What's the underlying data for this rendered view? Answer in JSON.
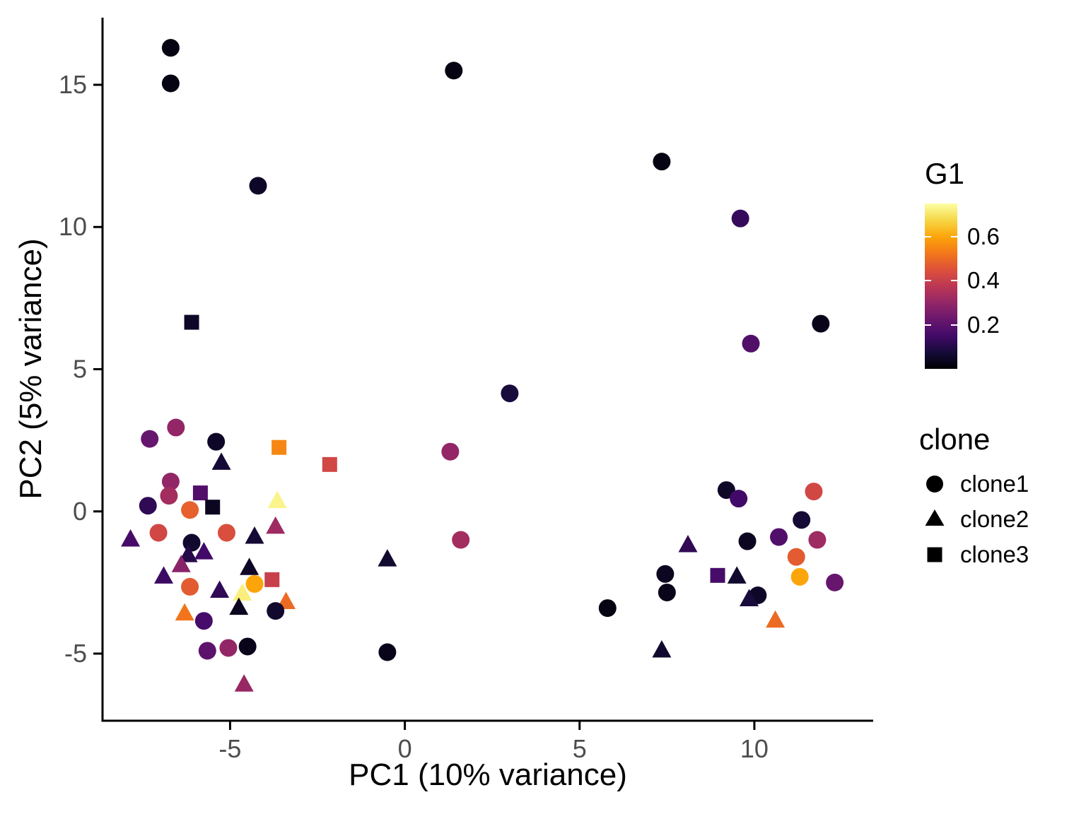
{
  "chart_data": {
    "type": "scatter",
    "title": "",
    "xlabel": "PC1 (10% variance)",
    "ylabel": "PC2 (5% variance)",
    "xlim": [
      -8.65,
      13.4
    ],
    "ylim": [
      -7.36,
      17.36
    ],
    "x_ticks": [
      -5,
      0,
      5,
      10
    ],
    "y_ticks": [
      -5,
      0,
      5,
      10,
      15
    ],
    "grid": false,
    "background": "#ffffff",
    "axis_color": "#000000",
    "tick_label_color": "#4d4d4d",
    "color_scale": {
      "title": "G1",
      "domain": [
        0,
        0.75
      ],
      "ticks": [
        0.6,
        0.4,
        0.2
      ],
      "palette": "inferno",
      "anchors": [
        "#000004",
        "#160b39",
        "#420a68",
        "#6a176e",
        "#932667",
        "#bc3754",
        "#dd513a",
        "#f37819",
        "#fca50a",
        "#f6d746",
        "#fcffa4"
      ]
    },
    "shape_scale": {
      "title": "clone",
      "entries": [
        {
          "shape": "circle",
          "label": "clone1"
        },
        {
          "shape": "triangle",
          "label": "clone2"
        },
        {
          "shape": "square",
          "label": "clone3"
        }
      ]
    },
    "points": [
      {
        "x": -6.7,
        "y": 16.3,
        "clone": "clone1",
        "g1": 0.02
      },
      {
        "x": -6.7,
        "y": 15.05,
        "clone": "clone1",
        "g1": 0.02
      },
      {
        "x": -4.2,
        "y": 11.45,
        "clone": "clone1",
        "g1": 0.05
      },
      {
        "x": 1.4,
        "y": 15.5,
        "clone": "clone1",
        "g1": 0.02
      },
      {
        "x": 7.35,
        "y": 12.3,
        "clone": "clone1",
        "g1": 0.02
      },
      {
        "x": 9.6,
        "y": 10.3,
        "clone": "clone1",
        "g1": 0.13
      },
      {
        "x": 9.9,
        "y": 5.9,
        "clone": "clone1",
        "g1": 0.18
      },
      {
        "x": 11.9,
        "y": 6.6,
        "clone": "clone1",
        "g1": 0.03
      },
      {
        "x": -6.1,
        "y": 6.65,
        "clone": "clone3",
        "g1": 0.05
      },
      {
        "x": 3.0,
        "y": 4.15,
        "clone": "clone1",
        "g1": 0.08
      },
      {
        "x": 1.3,
        "y": 2.1,
        "clone": "clone1",
        "g1": 0.3
      },
      {
        "x": -7.3,
        "y": 2.55,
        "clone": "clone1",
        "g1": 0.22
      },
      {
        "x": -6.55,
        "y": 2.95,
        "clone": "clone1",
        "g1": 0.3
      },
      {
        "x": -5.4,
        "y": 2.45,
        "clone": "clone1",
        "g1": 0.05
      },
      {
        "x": -3.6,
        "y": 2.25,
        "clone": "clone3",
        "g1": 0.55
      },
      {
        "x": -2.15,
        "y": 1.65,
        "clone": "clone3",
        "g1": 0.42
      },
      {
        "x": -5.25,
        "y": 1.7,
        "clone": "clone2",
        "g1": 0.07
      },
      {
        "x": -6.7,
        "y": 1.05,
        "clone": "clone1",
        "g1": 0.3
      },
      {
        "x": -6.75,
        "y": 0.55,
        "clone": "clone1",
        "g1": 0.33
      },
      {
        "x": -5.85,
        "y": 0.65,
        "clone": "clone3",
        "g1": 0.18
      },
      {
        "x": -5.5,
        "y": 0.15,
        "clone": "clone3",
        "g1": 0.04
      },
      {
        "x": -3.65,
        "y": 0.35,
        "clone": "clone2",
        "g1": 0.73
      },
      {
        "x": -7.35,
        "y": 0.2,
        "clone": "clone1",
        "g1": 0.12
      },
      {
        "x": -6.15,
        "y": 0.05,
        "clone": "clone1",
        "g1": 0.48
      },
      {
        "x": -7.05,
        "y": -0.75,
        "clone": "clone1",
        "g1": 0.42
      },
      {
        "x": -5.1,
        "y": -0.75,
        "clone": "clone1",
        "g1": 0.44
      },
      {
        "x": -3.7,
        "y": -0.55,
        "clone": "clone2",
        "g1": 0.32
      },
      {
        "x": -7.85,
        "y": -1.0,
        "clone": "clone2",
        "g1": 0.16
      },
      {
        "x": -4.3,
        "y": -0.9,
        "clone": "clone2",
        "g1": 0.07
      },
      {
        "x": -6.1,
        "y": -1.1,
        "clone": "clone1",
        "g1": 0.06
      },
      {
        "x": -6.2,
        "y": -1.55,
        "clone": "clone2",
        "g1": 0.1
      },
      {
        "x": -5.75,
        "y": -1.45,
        "clone": "clone2",
        "g1": 0.15
      },
      {
        "x": -6.9,
        "y": -2.3,
        "clone": "clone2",
        "g1": 0.14
      },
      {
        "x": -6.4,
        "y": -1.9,
        "clone": "clone2",
        "g1": 0.28
      },
      {
        "x": -0.5,
        "y": -1.7,
        "clone": "clone2",
        "g1": 0.06
      },
      {
        "x": 1.6,
        "y": -1.0,
        "clone": "clone1",
        "g1": 0.33
      },
      {
        "x": -4.45,
        "y": -2.0,
        "clone": "clone2",
        "g1": 0.05
      },
      {
        "x": -3.8,
        "y": -2.4,
        "clone": "clone3",
        "g1": 0.4
      },
      {
        "x": -4.3,
        "y": -2.55,
        "clone": "clone1",
        "g1": 0.6
      },
      {
        "x": -4.65,
        "y": -2.9,
        "clone": "clone2",
        "g1": 0.72
      },
      {
        "x": -5.3,
        "y": -2.8,
        "clone": "clone2",
        "g1": 0.12
      },
      {
        "x": -6.15,
        "y": -2.65,
        "clone": "clone1",
        "g1": 0.47
      },
      {
        "x": -3.4,
        "y": -3.2,
        "clone": "clone2",
        "g1": 0.5
      },
      {
        "x": -6.3,
        "y": -3.6,
        "clone": "clone2",
        "g1": 0.52
      },
      {
        "x": -5.75,
        "y": -3.85,
        "clone": "clone1",
        "g1": 0.16
      },
      {
        "x": -3.7,
        "y": -3.5,
        "clone": "clone1",
        "g1": 0.06
      },
      {
        "x": -4.75,
        "y": -3.4,
        "clone": "clone2",
        "g1": 0.04
      },
      {
        "x": -5.65,
        "y": -4.9,
        "clone": "clone1",
        "g1": 0.2
      },
      {
        "x": -5.05,
        "y": -4.8,
        "clone": "clone1",
        "g1": 0.3
      },
      {
        "x": -4.5,
        "y": -4.75,
        "clone": "clone1",
        "g1": 0.03
      },
      {
        "x": -4.6,
        "y": -6.1,
        "clone": "clone2",
        "g1": 0.31
      },
      {
        "x": -0.5,
        "y": -4.95,
        "clone": "clone1",
        "g1": 0.03
      },
      {
        "x": 9.2,
        "y": 0.75,
        "clone": "clone1",
        "g1": 0.05
      },
      {
        "x": 11.7,
        "y": 0.7,
        "clone": "clone1",
        "g1": 0.42
      },
      {
        "x": 9.55,
        "y": 0.45,
        "clone": "clone1",
        "g1": 0.15
      },
      {
        "x": 11.35,
        "y": -0.3,
        "clone": "clone1",
        "g1": 0.07
      },
      {
        "x": 10.7,
        "y": -0.9,
        "clone": "clone1",
        "g1": 0.18
      },
      {
        "x": 11.8,
        "y": -1.0,
        "clone": "clone1",
        "g1": 0.32
      },
      {
        "x": 9.8,
        "y": -1.05,
        "clone": "clone1",
        "g1": 0.04
      },
      {
        "x": 8.1,
        "y": -1.2,
        "clone": "clone2",
        "g1": 0.12
      },
      {
        "x": 7.45,
        "y": -2.2,
        "clone": "clone1",
        "g1": 0.04
      },
      {
        "x": 7.5,
        "y": -2.85,
        "clone": "clone1",
        "g1": 0.03
      },
      {
        "x": 8.95,
        "y": -2.25,
        "clone": "clone3",
        "g1": 0.16
      },
      {
        "x": 9.5,
        "y": -2.3,
        "clone": "clone2",
        "g1": 0.06
      },
      {
        "x": 11.2,
        "y": -1.6,
        "clone": "clone1",
        "g1": 0.47
      },
      {
        "x": 11.3,
        "y": -2.3,
        "clone": "clone1",
        "g1": 0.6
      },
      {
        "x": 12.3,
        "y": -2.5,
        "clone": "clone1",
        "g1": 0.22
      },
      {
        "x": 10.1,
        "y": -2.95,
        "clone": "clone1",
        "g1": 0.05
      },
      {
        "x": 9.85,
        "y": -3.1,
        "clone": "clone2",
        "g1": 0.08
      },
      {
        "x": 5.8,
        "y": -3.4,
        "clone": "clone1",
        "g1": 0.02
      },
      {
        "x": 10.6,
        "y": -3.85,
        "clone": "clone2",
        "g1": 0.5
      },
      {
        "x": 7.35,
        "y": -4.9,
        "clone": "clone2",
        "g1": 0.06
      }
    ]
  }
}
